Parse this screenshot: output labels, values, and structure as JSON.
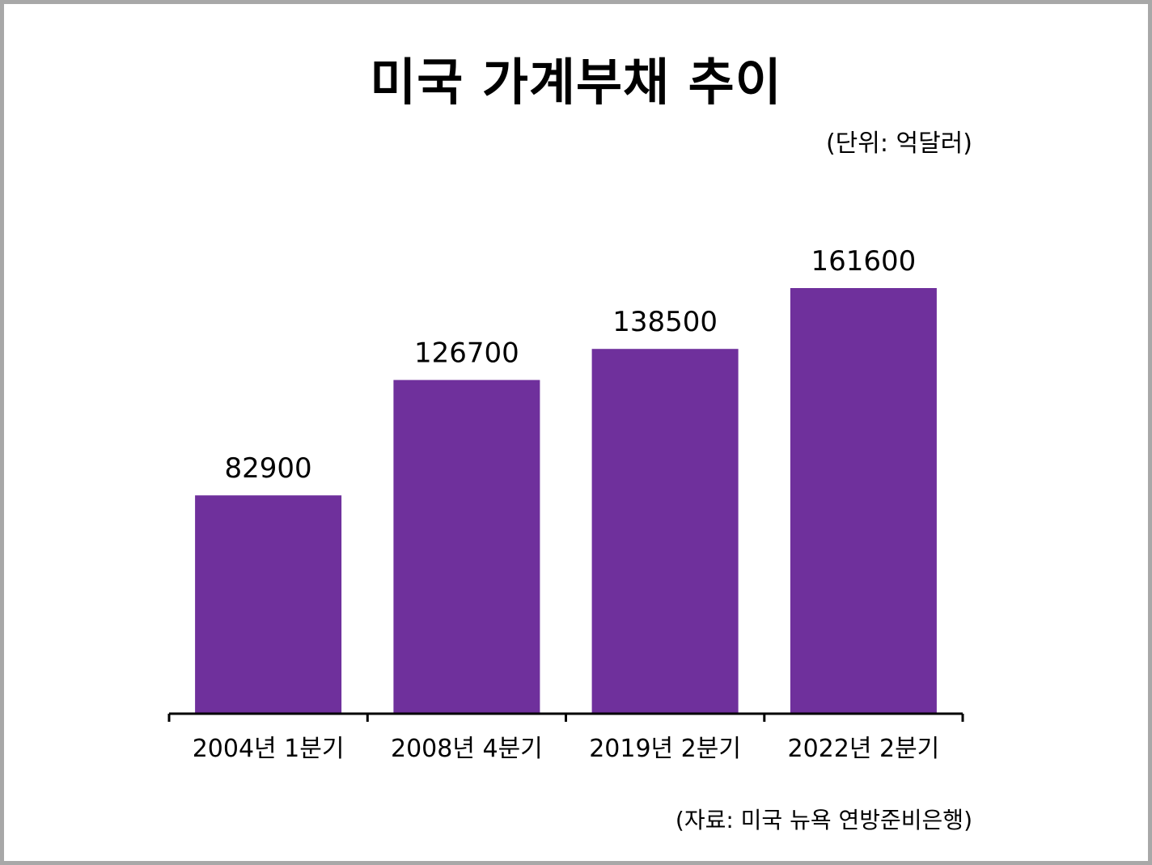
{
  "title": "미국 가계부채 추이",
  "unit_note": "(단위: 억달러)",
  "source_note": "(자료: 미국 뉴욕 연방준비은행)",
  "colors": {
    "bar": "#6f309c",
    "axis": "#000000",
    "text": "#000000",
    "frame_border": "#a8a8a8"
  },
  "chart_data": {
    "type": "bar",
    "title": "미국 가계부채 추이",
    "categories": [
      "2004년 1분기",
      "2008년 4분기",
      "2019년 2분기",
      "2022년 2분기"
    ],
    "values": [
      82900,
      126700,
      138500,
      161600
    ],
    "data_labels": [
      "82900",
      "126700",
      "138500",
      "161600"
    ],
    "ylim": [
      0,
      161600
    ],
    "grid": false,
    "legend": "none",
    "xlabel": "",
    "ylabel": ""
  }
}
